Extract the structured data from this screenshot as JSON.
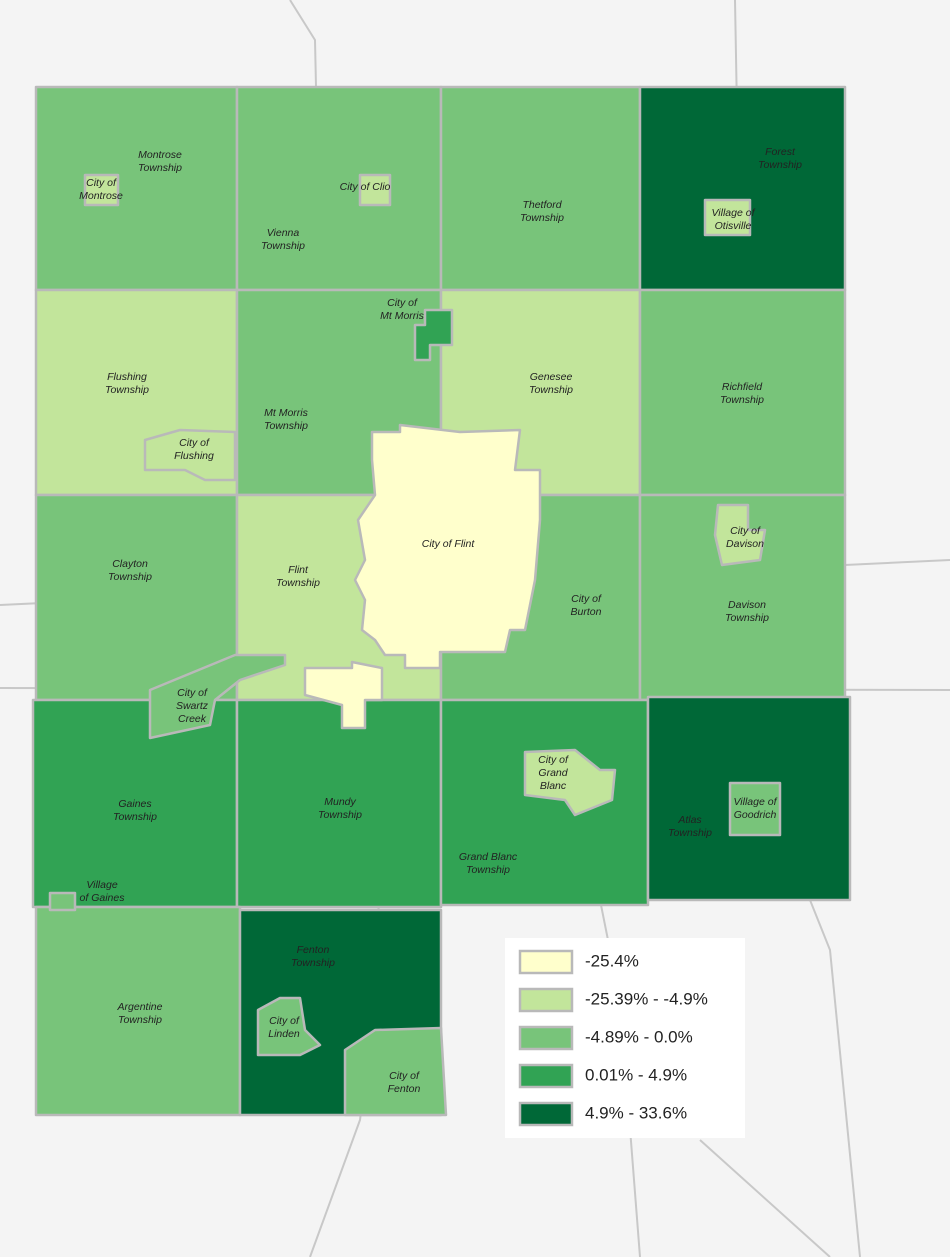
{
  "regions": [
    {
      "label": [
        "Montrose",
        "Township"
      ],
      "color": "#78c47a"
    },
    {
      "label": [
        "Vienna",
        "Township"
      ],
      "color": "#78c47a"
    },
    {
      "label": [
        "Thetford",
        "Township"
      ],
      "color": "#78c47a"
    },
    {
      "label": [
        "Forest",
        "Township"
      ],
      "color": "#006837"
    },
    {
      "label": [
        "Flushing",
        "Township"
      ],
      "color": "#c2e59b"
    },
    {
      "label": [
        "Mt Morris",
        "Township"
      ],
      "color": "#78c47a"
    },
    {
      "label": [
        "Genesee",
        "Township"
      ],
      "color": "#c2e59b"
    },
    {
      "label": [
        "Richfield",
        "Township"
      ],
      "color": "#78c47a"
    },
    {
      "label": [
        "Clayton",
        "Township"
      ],
      "color": "#78c47a"
    },
    {
      "label": [
        "Flint",
        "Township"
      ],
      "color": "#c2e59b"
    },
    {
      "label": [
        "City of",
        "Burton"
      ],
      "color": "#78c47a"
    },
    {
      "label": [
        "Davison",
        "Township"
      ],
      "color": "#78c47a"
    },
    {
      "label": [
        "Gaines",
        "Township"
      ],
      "color": "#31a354"
    },
    {
      "label": [
        "Mundy",
        "Township"
      ],
      "color": "#31a354"
    },
    {
      "label": [
        "Grand Blanc",
        "Township"
      ],
      "color": "#31a354"
    },
    {
      "label": [
        "Atlas",
        "Township"
      ],
      "color": "#006837"
    },
    {
      "label": [
        "Argentine",
        "Township"
      ],
      "color": "#78c47a"
    },
    {
      "label": [
        "Fenton",
        "Township"
      ],
      "color": "#006837"
    },
    {
      "label": [
        "City of Flint"
      ],
      "color": "#ffffcc"
    },
    {
      "label": [
        "City of",
        "Montrose"
      ],
      "color": "#c2e59b"
    },
    {
      "label": [
        "City of Clio"
      ],
      "color": "#c2e59b"
    },
    {
      "label": [
        "City of",
        "Mt Morris"
      ],
      "color": "#31a354"
    },
    {
      "label": [
        "City of",
        "Flushing"
      ],
      "color": "#c2e59b"
    },
    {
      "label": [
        "City of",
        "Davison"
      ],
      "color": "#c2e59b"
    },
    {
      "label": [
        "Village of",
        "Otisville"
      ],
      "color": "#c2e59b"
    },
    {
      "label": [
        "City of",
        "Swartz",
        "Creek"
      ],
      "color": "#78c47a"
    },
    {
      "label": [
        "City of",
        "Grand",
        "Blanc"
      ],
      "color": "#c2e59b"
    },
    {
      "label": [
        "Village of",
        "Goodrich"
      ],
      "color": "#78c47a"
    },
    {
      "label": [
        "Village",
        "of Gaines"
      ],
      "color": "#78c47a"
    },
    {
      "label": [
        "City of",
        "Linden"
      ],
      "color": "#78c47a"
    },
    {
      "label": [
        "City of",
        "Fenton"
      ],
      "color": "#78c47a"
    }
  ],
  "legend": [
    {
      "label": "-25.4%",
      "color": "#ffffcc"
    },
    {
      "label": "-25.39% - -4.9%",
      "color": "#c2e59b"
    },
    {
      "label": "-4.89% - 0.0%",
      "color": "#78c47a"
    },
    {
      "label": "0.01% - 4.9%",
      "color": "#31a354"
    },
    {
      "label": "4.9% - 33.6%",
      "color": "#006837"
    }
  ]
}
